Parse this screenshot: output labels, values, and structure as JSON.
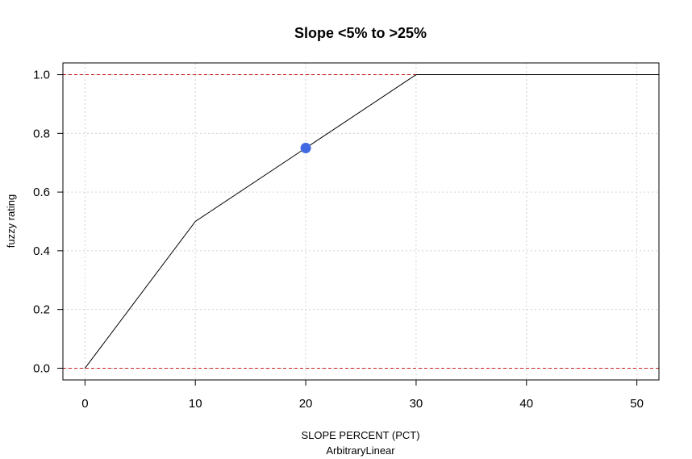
{
  "chart_data": {
    "type": "line",
    "title": "Slope <5% to >25%",
    "xlabel": "SLOPE PERCENT (PCT)",
    "xlabel_sub": "ArbitraryLinear",
    "ylabel": "fuzzy rating",
    "xlim": [
      -2,
      52
    ],
    "ylim": [
      -0.04,
      1.04
    ],
    "xticks": [
      0,
      10,
      20,
      30,
      40,
      50
    ],
    "yticks": [
      0.0,
      0.2,
      0.4,
      0.6,
      0.8,
      1.0
    ],
    "ytick_labels": [
      "0.0",
      "0.2",
      "0.4",
      "0.6",
      "0.8",
      "1.0"
    ],
    "grid": true,
    "series": [
      {
        "x": [
          0,
          10,
          30,
          52
        ],
        "y": [
          0.0,
          0.5,
          1.0,
          1.0
        ],
        "color": "#000000"
      }
    ],
    "reference_lines": [
      {
        "y": 0.0,
        "color": "#cc2222",
        "style": "dashed"
      },
      {
        "y": 1.0,
        "color": "#cc2222",
        "style": "dashed"
      }
    ],
    "highlight_point": {
      "x": 20,
      "y": 0.75,
      "color": "#4169e1"
    }
  }
}
